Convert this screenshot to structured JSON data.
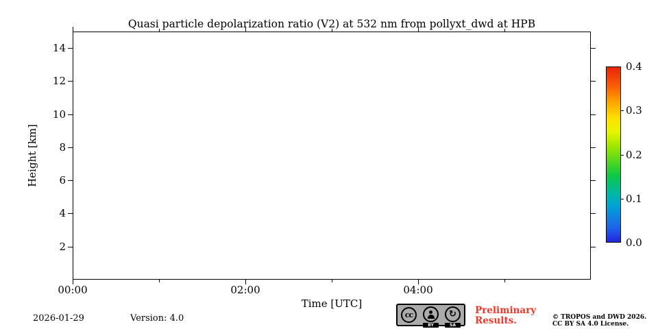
{
  "chart_data": {
    "type": "heatmap",
    "title": "Quasi particle depolarization ratio (V2) at 532 nm from pollyxt_dwd at HPB",
    "xlabel": "Time [UTC]",
    "ylabel": "Height [km]",
    "x_ticks_major": [
      "00:00",
      "02:00",
      "04:00"
    ],
    "x_ticks_minor": [
      "01:00",
      "03:00",
      "05:00"
    ],
    "xlim": [
      "00:00",
      "06:00"
    ],
    "y_ticks": [
      2,
      4,
      6,
      8,
      10,
      12,
      14
    ],
    "ylim": [
      0,
      15
    ],
    "grid": false,
    "series": [],
    "note": "plot area is empty - no data rendered",
    "colorbar": {
      "ticks": [
        0.0,
        0.1,
        0.2,
        0.3,
        0.4
      ],
      "vmin": 0.0,
      "vmax": 0.4,
      "colormap": "jet",
      "position": "right"
    }
  },
  "footer": {
    "date": "2026-01-29",
    "version": "Version: 4.0",
    "preliminary": "Preliminary\nResults.",
    "copyright_line1": "© TROPOS and DWD 2026.",
    "copyright_line2": "CC BY SA 4.0 License.",
    "license_badge": {
      "cc_label": "cc",
      "by_label": "BY",
      "sa_label": "SA",
      "sa_glyph": "↻"
    }
  },
  "colors": {
    "preliminary_red": "#f0392c",
    "badge_gray": "#ababab",
    "spine_black": "#000000",
    "background": "#ffffff"
  }
}
